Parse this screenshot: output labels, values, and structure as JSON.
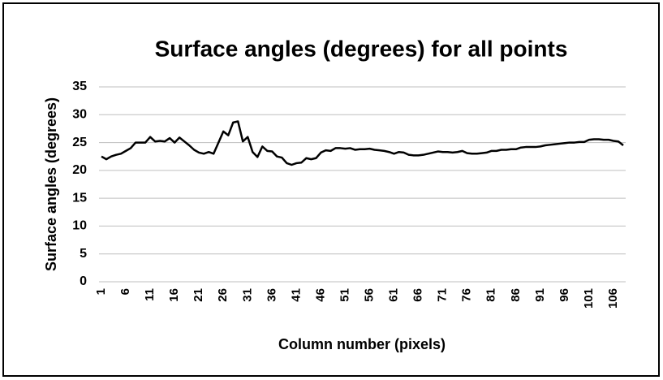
{
  "chart_data": {
    "type": "line",
    "title": "Surface angles (degrees) for all points",
    "x_label": "Column number (pixels)",
    "y_label": "Surface angles (degrees)",
    "categories": [
      "1",
      null,
      null,
      null,
      null,
      "6",
      null,
      null,
      null,
      null,
      "11",
      null,
      null,
      null,
      null,
      "16",
      null,
      null,
      null,
      null,
      "21",
      null,
      null,
      null,
      null,
      "26",
      null,
      null,
      null,
      null,
      "31",
      null,
      null,
      null,
      null,
      "36",
      null,
      null,
      null,
      null,
      "41",
      null,
      null,
      null,
      null,
      "46",
      null,
      null,
      null,
      null,
      "51",
      null,
      null,
      null,
      null,
      "56",
      null,
      null,
      null,
      null,
      "61",
      null,
      null,
      null,
      null,
      "66",
      null,
      null,
      null,
      null,
      "71",
      null,
      null,
      null,
      null,
      "76",
      null,
      null,
      null,
      null,
      "81",
      null,
      null,
      null,
      null,
      "86",
      null,
      null,
      null,
      null,
      "91",
      null,
      null,
      null,
      null,
      "96",
      null,
      null,
      null,
      null,
      "101",
      null,
      null,
      null,
      null,
      "106",
      null,
      null
    ],
    "series": [
      {
        "name": "Surface angle",
        "color": "#000000",
        "values": [
          22.5,
          22,
          22.5,
          22.8,
          23,
          23.5,
          24,
          25,
          25,
          25,
          26,
          25.2,
          25.3,
          25.2,
          25.8,
          25,
          25.9,
          25.2,
          24.5,
          23.7,
          23.2,
          23,
          23.3,
          23,
          25,
          27,
          26.3,
          28.6,
          28.8,
          25.2,
          26,
          23.3,
          22.4,
          24.3,
          23.5,
          23.4,
          22.5,
          22.3,
          21.3,
          21,
          21.3,
          21.4,
          22.2,
          22,
          22.2,
          23.2,
          23.6,
          23.5,
          24,
          24,
          23.9,
          24,
          23.7,
          23.8,
          23.8,
          23.9,
          23.7,
          23.6,
          23.5,
          23.3,
          23,
          23.3,
          23.2,
          22.8,
          22.7,
          22.7,
          22.8,
          23,
          23.2,
          23.4,
          23.3,
          23.3,
          23.2,
          23.3,
          23.5,
          23.1,
          23,
          23,
          23.1,
          23.2,
          23.5,
          23.5,
          23.7,
          23.7,
          23.8,
          23.8,
          24.1,
          24.2,
          24.2,
          24.2,
          24.3,
          24.5,
          24.6,
          24.7,
          24.8,
          24.9,
          25,
          25,
          25.1,
          25.1,
          25.5,
          25.6,
          25.6,
          25.5,
          25.5,
          25.3,
          25.2,
          24.5
        ]
      }
    ],
    "ylim": [
      0,
      35
    ],
    "yticks": [
      0,
      5,
      10,
      15,
      20,
      25,
      30,
      35
    ],
    "grid": true
  }
}
